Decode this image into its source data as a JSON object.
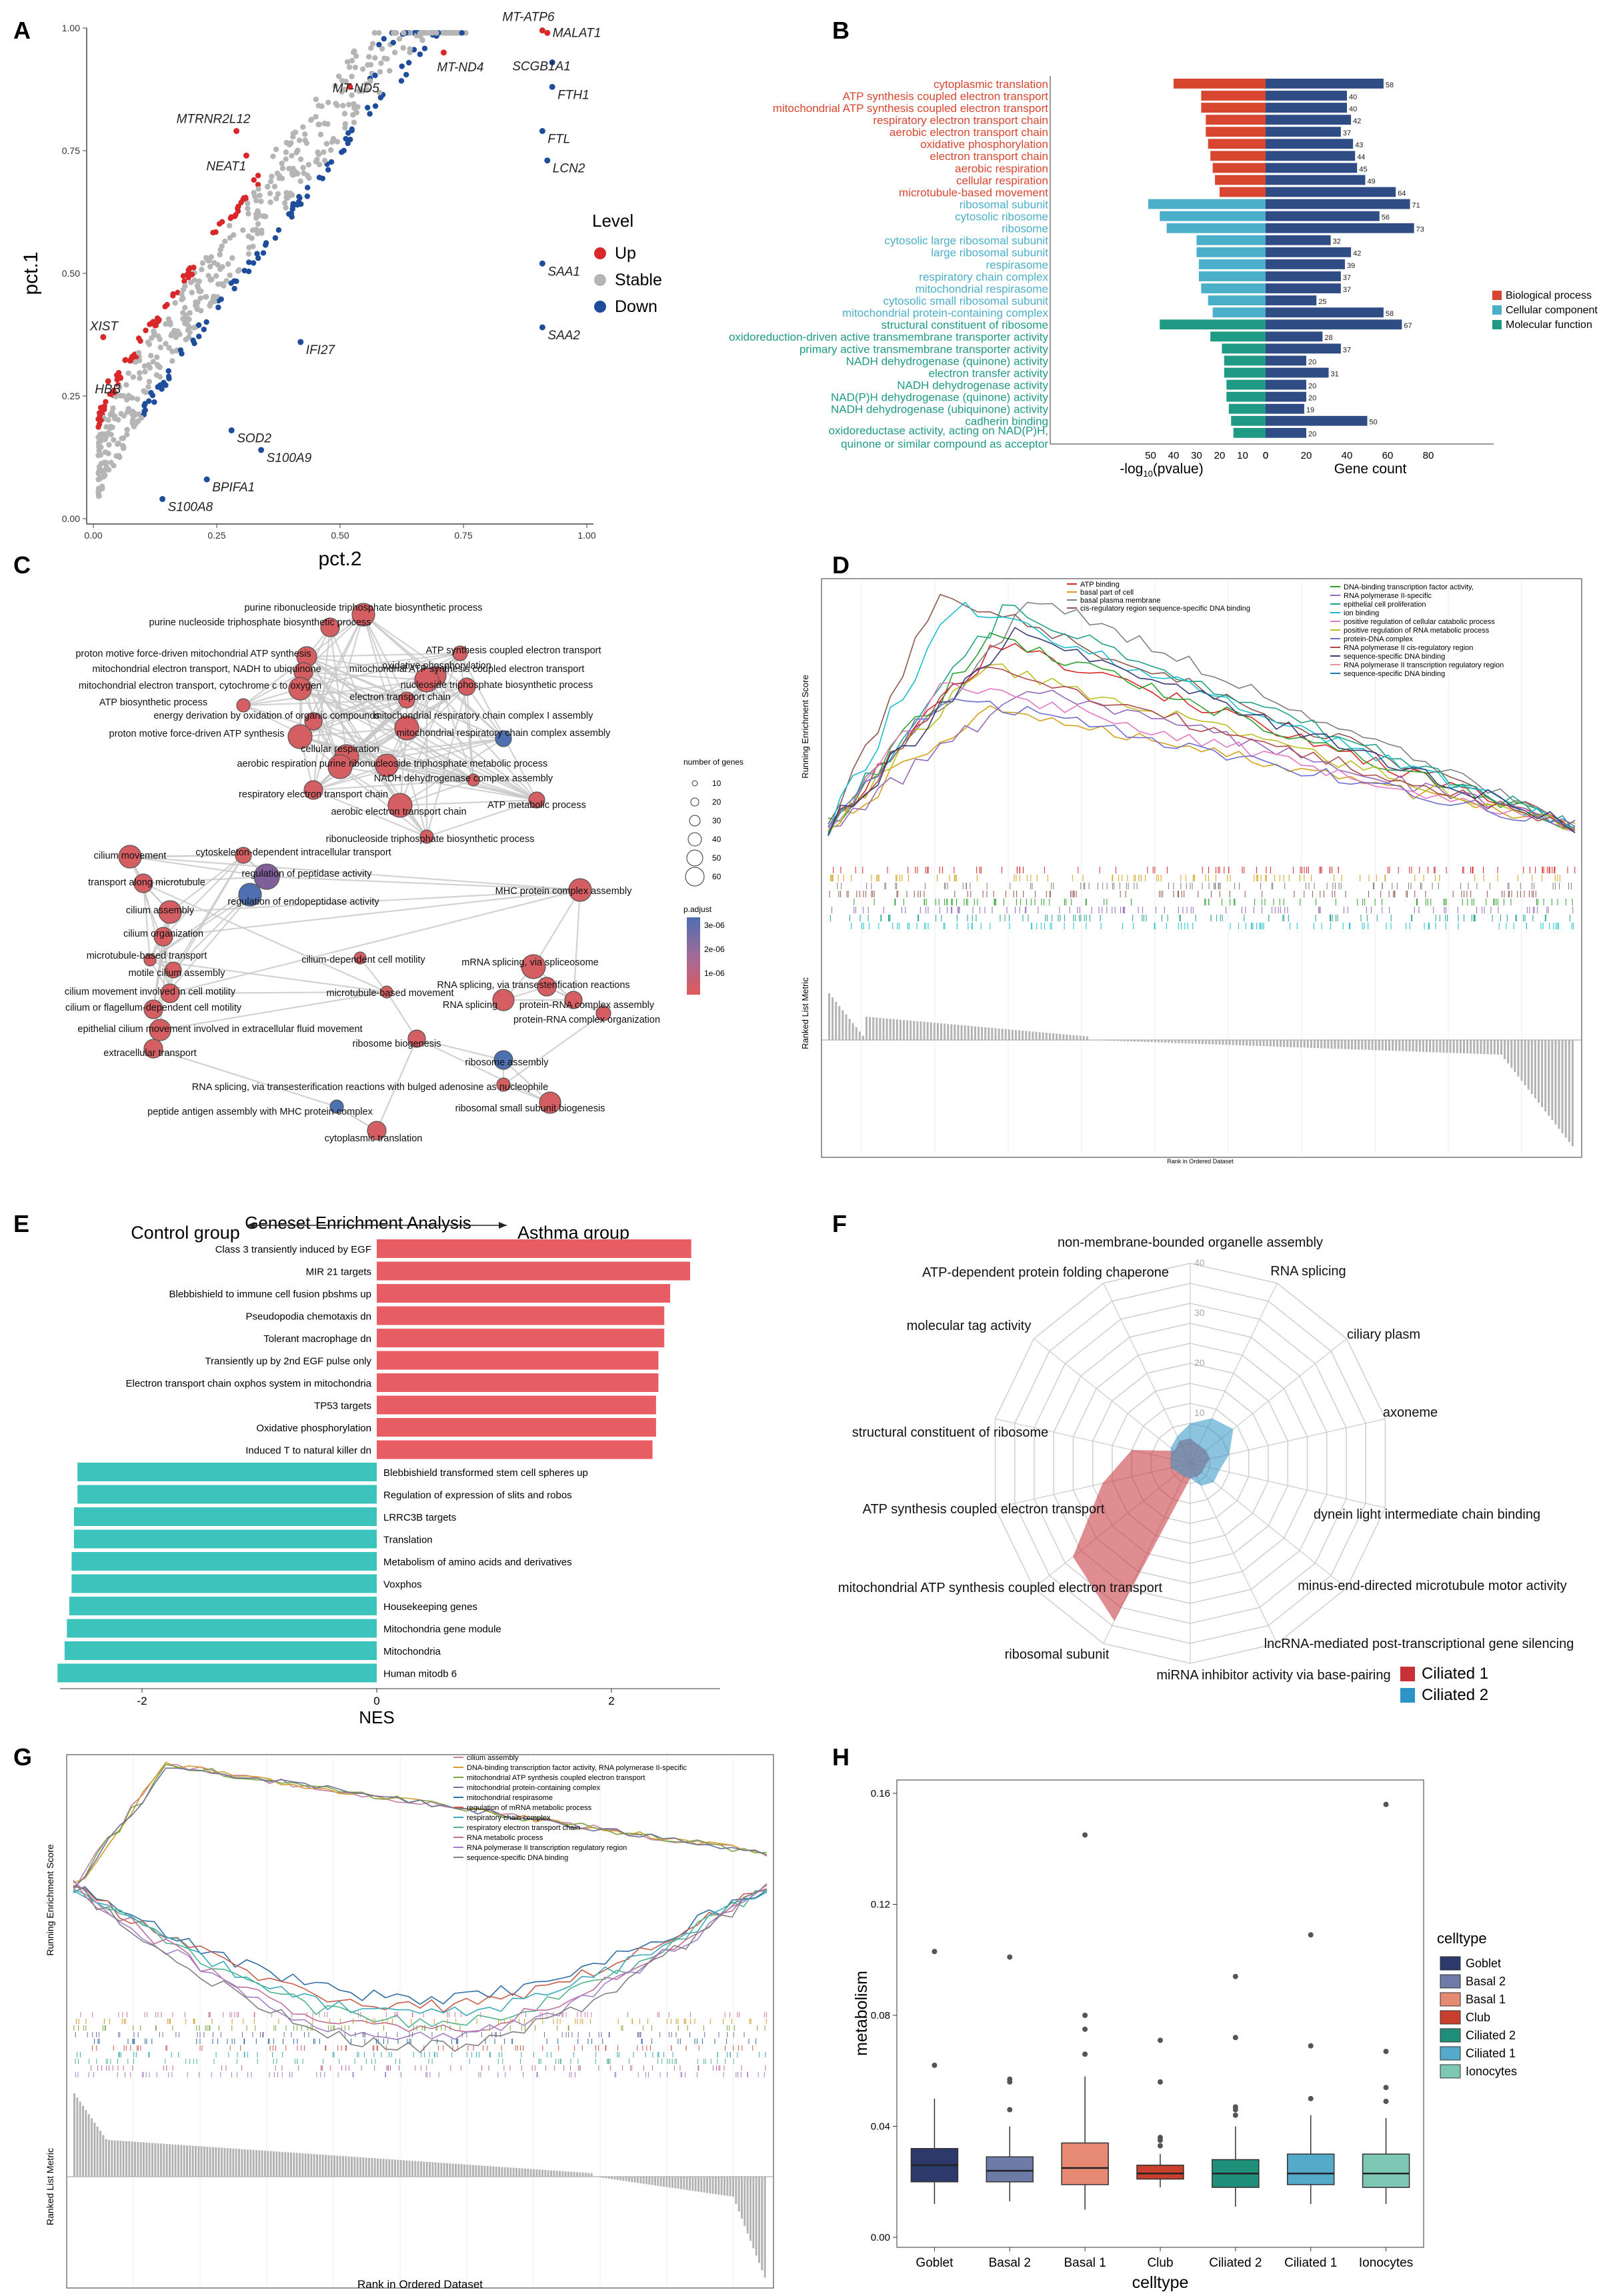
{
  "panel_letters": [
    "A",
    "B",
    "C",
    "D",
    "E",
    "F",
    "G",
    "H"
  ],
  "colors": {
    "up": "#d8282a",
    "stable": "#b5b5b5",
    "down": "#1e4d9c",
    "bp": "#d9462f",
    "cc": "#4bafc9",
    "mf": "#1f9a84",
    "asthma": "#e85d63",
    "control": "#3cc3bb",
    "ciliated1": "#c73036",
    "ciliated2": "#2e93c7",
    "gene_bar": "#2f4c85",
    "network_node": "#d45e62"
  },
  "chart_data": [
    {
      "panel": "A",
      "type": "scatter",
      "xlabel": "pct.2",
      "ylabel": "pct.1",
      "xlim": [
        0,
        1
      ],
      "ylim": [
        0,
        1
      ],
      "x_ticks": [
        "0.00",
        "0.25",
        "0.50",
        "0.75",
        "1.00"
      ],
      "y_ticks": [
        "0.00",
        "0.25",
        "0.50",
        "0.75",
        "1.00"
      ],
      "legend_title": "Level",
      "legend": [
        "Up",
        "Stable",
        "Down"
      ],
      "labeled_genes": [
        {
          "gene": "MT-ATP6",
          "x": 0.91,
          "y": 0.995,
          "level": "Up"
        },
        {
          "gene": "MALAT1",
          "x": 0.92,
          "y": 0.99,
          "level": "Up"
        },
        {
          "gene": "MT-ND4",
          "x": 0.71,
          "y": 0.95,
          "level": "Up"
        },
        {
          "gene": "SCGB1A1",
          "x": 0.93,
          "y": 0.93,
          "level": "Down"
        },
        {
          "gene": "FTH1",
          "x": 0.93,
          "y": 0.88,
          "level": "Down"
        },
        {
          "gene": "MT-ND5",
          "x": 0.52,
          "y": 0.88,
          "level": "Up"
        },
        {
          "gene": "MTRNR2L12",
          "x": 0.29,
          "y": 0.79,
          "level": "Up"
        },
        {
          "gene": "NEAT1",
          "x": 0.31,
          "y": 0.74,
          "level": "Up"
        },
        {
          "gene": "FTL",
          "x": 0.91,
          "y": 0.79,
          "level": "Down"
        },
        {
          "gene": "LCN2",
          "x": 0.92,
          "y": 0.73,
          "level": "Down"
        },
        {
          "gene": "SAA1",
          "x": 0.91,
          "y": 0.52,
          "level": "Down"
        },
        {
          "gene": "XIST",
          "x": 0.02,
          "y": 0.37,
          "level": "Up"
        },
        {
          "gene": "IFI27",
          "x": 0.42,
          "y": 0.36,
          "level": "Down"
        },
        {
          "gene": "SAA2",
          "x": 0.91,
          "y": 0.39,
          "level": "Down"
        },
        {
          "gene": "HBB",
          "x": 0.03,
          "y": 0.28,
          "level": "Up"
        },
        {
          "gene": "SOD2",
          "x": 0.28,
          "y": 0.18,
          "level": "Down"
        },
        {
          "gene": "S100A9",
          "x": 0.34,
          "y": 0.14,
          "level": "Down"
        },
        {
          "gene": "BPIFA1",
          "x": 0.23,
          "y": 0.08,
          "level": "Down"
        },
        {
          "gene": "S100A8",
          "x": 0.14,
          "y": 0.04,
          "level": "Down"
        }
      ]
    },
    {
      "panel": "B",
      "type": "bar",
      "xlabel_left": "-log",
      "xlabel_left_sub": "10",
      "xlabel_left_tail": "(pvalue)",
      "xlabel_right": "Gene count",
      "left_ticks": [
        "50",
        "40",
        "30",
        "20",
        "10",
        "0"
      ],
      "right_ticks": [
        "0",
        "20",
        "40",
        "60",
        "80"
      ],
      "legend": [
        "Biological process",
        "Cellular component",
        "Molecular function"
      ],
      "terms": [
        {
          "label": "cytoplasmic translation",
          "cat": "bp",
          "logp": 40,
          "count": 58
        },
        {
          "label": "ATP synthesis coupled electron transport",
          "cat": "bp",
          "logp": 28,
          "count": 40
        },
        {
          "label": "mitochondrial ATP synthesis coupled electron transport",
          "cat": "bp",
          "logp": 28,
          "count": 40
        },
        {
          "label": "respiratory electron transport chain",
          "cat": "bp",
          "logp": 26,
          "count": 42
        },
        {
          "label": "aerobic electron transport chain",
          "cat": "bp",
          "logp": 26,
          "count": 37
        },
        {
          "label": "oxidative phosphorylation",
          "cat": "bp",
          "logp": 25,
          "count": 43
        },
        {
          "label": "electron transport chain",
          "cat": "bp",
          "logp": 24,
          "count": 44
        },
        {
          "label": "aerobic respiration",
          "cat": "bp",
          "logp": 23,
          "count": 45
        },
        {
          "label": "cellular respiration",
          "cat": "bp",
          "logp": 22,
          "count": 49
        },
        {
          "label": "microtubule-based movement",
          "cat": "bp",
          "logp": 20,
          "count": 64
        },
        {
          "label": "ribosomal subunit",
          "cat": "cc",
          "logp": 51,
          "count": 71
        },
        {
          "label": "cytosolic ribosome",
          "cat": "cc",
          "logp": 46,
          "count": 56
        },
        {
          "label": "ribosome",
          "cat": "cc",
          "logp": 43,
          "count": 73
        },
        {
          "label": "cytosolic large ribosomal subunit",
          "cat": "cc",
          "logp": 30,
          "count": 32
        },
        {
          "label": "large ribosomal subunit",
          "cat": "cc",
          "logp": 30,
          "count": 42
        },
        {
          "label": "respirasome",
          "cat": "cc",
          "logp": 29,
          "count": 39
        },
        {
          "label": "respiratory chain complex",
          "cat": "cc",
          "logp": 29,
          "count": 37
        },
        {
          "label": "mitochondrial respirasome",
          "cat": "cc",
          "logp": 28,
          "count": 37
        },
        {
          "label": "cytosolic small ribosomal subunit",
          "cat": "cc",
          "logp": 25,
          "count": 25
        },
        {
          "label": "mitochondrial protein-containing complex",
          "cat": "cc",
          "logp": 23,
          "count": 58
        },
        {
          "label": "structural constituent of ribosome",
          "cat": "mf",
          "logp": 46,
          "count": 67
        },
        {
          "label": "oxidoreduction-driven active transmembrane transporter activity",
          "cat": "mf",
          "logp": 24,
          "count": 28
        },
        {
          "label": "primary active transmembrane transporter activity",
          "cat": "mf",
          "logp": 19,
          "count": 37
        },
        {
          "label": "NADH dehydrogenase (quinone) activity",
          "cat": "mf",
          "logp": 18,
          "count": 20
        },
        {
          "label": "electron transfer activity",
          "cat": "mf",
          "logp": 18,
          "count": 31
        },
        {
          "label": "NADH dehydrogenase activity",
          "cat": "mf",
          "logp": 17,
          "count": 20
        },
        {
          "label": "NAD(P)H dehydrogenase (quinone) activity",
          "cat": "mf",
          "logp": 17,
          "count": 20
        },
        {
          "label": "NADH dehydrogenase (ubiquinone) activity",
          "cat": "mf",
          "logp": 16,
          "count": 19
        },
        {
          "label": "cadherin binding",
          "cat": "mf",
          "logp": 15,
          "count": 50
        },
        {
          "label": "oxidoreductase activity, acting on NAD(P)H,",
          "label2": "quinone or similar compound as acceptor",
          "cat": "mf",
          "logp": 14,
          "count": 20
        }
      ]
    },
    {
      "panel": "C",
      "type": "network",
      "size_legend_title": "number of genes",
      "size_legend": [
        "10",
        "20",
        "30",
        "40",
        "50",
        "60"
      ],
      "color_legend_title": "p.adjust",
      "color_legend": [
        "3e-06",
        "2e-06",
        "1e-06"
      ],
      "nodes": [
        "purine ribonucleoside triphosphate biosynthetic process",
        "purine nucleoside triphosphate biosynthetic process",
        "oxidative phosphorylation",
        "proton motive force-driven mitochondrial ATP synthesis",
        "ATP synthesis coupled electron transport",
        "mitochondrial electron transport, NADH to ubiquinone",
        "mitochondrial ATP synthesis coupled electron transport",
        "mitochondrial electron transport, cytochrome c to oxygen",
        "nucleoside triphosphate biosynthetic process",
        "ATP biosynthetic process",
        "electron transport chain",
        "energy derivation by oxidation of organic compounds",
        "mitochondrial respiratory chain complex I assembly",
        "proton motive force-driven ATP synthesis",
        "mitochondrial respiratory chain complex assembly",
        "cellular respiration",
        "aerobic respiration",
        "purine ribonucleoside triphosphate metabolic process",
        "NADH dehydrogenase complex assembly",
        "respiratory electron transport chain",
        "ATP metabolic process",
        "aerobic electron transport chain",
        "ribonucleoside triphosphate biosynthetic process",
        "cilium movement",
        "cytoskeleton-dependent intracellular transport",
        "transport along microtubule",
        "regulation of peptidase activity",
        "cilium assembly",
        "regulation of endopeptidase activity",
        "MHC protein complex assembly",
        "cilium organization",
        "microtubule-based transport",
        "cilium-dependent cell motility",
        "mRNA splicing, via spliceosome",
        "motile cilium assembly",
        "RNA splicing, via transesterification reactions",
        "cilium movement involved in cell motility",
        "microtubule-based movement",
        "RNA splicing",
        "protein-RNA complex assembly",
        "cilium or flagellum-dependent cell motility",
        "protein-RNA complex organization",
        "epithelial cilium movement involved in extracellular fluid movement",
        "extracellular transport",
        "ribosome biogenesis",
        "ribosome assembly",
        "RNA splicing, via transesterification reactions with bulged adenosine as nucleophile",
        "peptide antigen assembly with MHC protein complex",
        "ribosomal small subunit biogenesis",
        "cytoplasmic translation"
      ]
    },
    {
      "panel": "D",
      "type": "line",
      "ylabel": "Running Enrichment Score",
      "ylabel2": "Ranked List Metric",
      "xlabel": "Rank in Ordered Dataset",
      "series_left": [
        "ATP binding",
        "basal part of cell",
        "basal plasma membrane",
        "cis-regulatory region sequence-specific DNA binding"
      ],
      "series_right": [
        "DNA-binding transcription factor activity,",
        "RNA polymerase II-specific",
        "epithelial cell proliferation",
        "ion binding",
        "positive regulation of cellular catabolic process",
        "positive regulation of RNA metabolic process",
        "protein-DNA complex",
        "RNA polymerase II cis-regulatory region",
        "sequence-specific DNA binding",
        "RNA polymerase II transcription regulatory region",
        "sequence-specific DNA binding"
      ]
    },
    {
      "panel": "E",
      "type": "bar",
      "title": "Geneset Enrichment Analysis",
      "left_group": "Control group",
      "right_group": "Asthma group",
      "xlabel": "NES",
      "x_ticks": [
        "-2",
        "0",
        "2"
      ],
      "xlim": [
        -2.8,
        2.7
      ],
      "asthma": [
        {
          "label": "Class 3 transiently induced by EGF",
          "nes": 2.68
        },
        {
          "label": "MIR 21 targets",
          "nes": 2.67
        },
        {
          "label": "Blebbishield to immune cell fusion pbshms up",
          "nes": 2.5
        },
        {
          "label": "Pseudopodia chemotaxis dn",
          "nes": 2.45
        },
        {
          "label": "Tolerant macrophage dn",
          "nes": 2.45
        },
        {
          "label": "Transiently up by 2nd EGF pulse only",
          "nes": 2.4
        },
        {
          "label": "Electron transport chain oxphos system in mitochondria",
          "nes": 2.4
        },
        {
          "label": "TP53 targets",
          "nes": 2.38
        },
        {
          "label": "Oxidative phosphorylation",
          "nes": 2.38
        },
        {
          "label": "Induced T to natural killer dn",
          "nes": 2.35
        }
      ],
      "control": [
        {
          "label": "Blebbishield transformed stem cell spheres up",
          "nes": -2.55
        },
        {
          "label": "Regulation of expression of slits and robos",
          "nes": -2.55
        },
        {
          "label": "LRRC3B targets",
          "nes": -2.58
        },
        {
          "label": "Translation",
          "nes": -2.58
        },
        {
          "label": "Metabolism of amino acids and derivatives",
          "nes": -2.6
        },
        {
          "label": "Voxphos",
          "nes": -2.6
        },
        {
          "label": "Housekeeping genes",
          "nes": -2.62
        },
        {
          "label": "Mitochondria gene module",
          "nes": -2.64
        },
        {
          "label": "Mitochondria",
          "nes": -2.66
        },
        {
          "label": "Human mitodb 6",
          "nes": -2.72
        }
      ]
    },
    {
      "panel": "F",
      "type": "radar",
      "r_ticks": [
        "10",
        "20",
        "30",
        "40"
      ],
      "rmax": 40,
      "axes": [
        "non-membrane-bounded organelle assembly",
        "RNA splicing",
        "ciliary plasm",
        "axoneme",
        "dynein light intermediate chain binding",
        "minus-end-directed microtubule motor activity",
        "lncRNA-mediated post-transcriptional gene silencing",
        "miRNA inhibitor activity via base-pairing",
        "ribosomal subunit",
        "mitochondrial ATP synthesis coupled electron transport",
        "ATP synthesis coupled electron transport",
        "structural constituent of ribosome",
        "molecular tag activity",
        "ATP-dependent protein folding chaperone"
      ],
      "series": [
        {
          "name": "Ciliated 1",
          "values": [
            5,
            4,
            4,
            4,
            3,
            3,
            3,
            3,
            35,
            30,
            18,
            12,
            4,
            5
          ]
        },
        {
          "name": "Ciliated 2",
          "values": [
            8,
            10,
            11,
            8,
            6,
            6,
            5,
            3,
            3,
            3,
            4,
            4,
            5,
            6
          ]
        }
      ]
    },
    {
      "panel": "G",
      "type": "line",
      "ylabel": "Running Enrichment Score",
      "ylabel2": "Ranked List Metric",
      "xlabel": "Rank in Ordered Dataset",
      "series": [
        "cilium assembly",
        "DNA-binding transcription factor activity, RNA polymerase II-specific",
        "mitochondrial ATP synthesis coupled electron transport",
        "mitochondrial protein-containing complex",
        "mitochondrial respirasome",
        "regulation of mRNA metabolic process",
        "respiratory chain complex",
        "respiratory electron transport chain",
        "RNA metabolic process",
        "RNA polymerase II transcription regulatory region",
        "sequence-specific DNA binding"
      ]
    },
    {
      "panel": "H",
      "type": "box",
      "xlabel": "celltype",
      "ylabel": "metabolism",
      "ylim": [
        0,
        0.16
      ],
      "y_ticks": [
        "0.00",
        "0.04",
        "0.08",
        "0.12",
        "0.16"
      ],
      "legend_title": "celltype",
      "categories": [
        "Goblet",
        "Basal 2",
        "Basal 1",
        "Club",
        "Ciliated 2",
        "Ciliated 1",
        "Ionocytes"
      ],
      "legend_order": [
        "Goblet",
        "Basal 2",
        "Basal 1",
        "Club",
        "Ciliated 2",
        "Ciliated 1",
        "Ionocytes"
      ],
      "box_colors": [
        "#2b3a6b",
        "#6e7ba6",
        "#e68a74",
        "#c8402d",
        "#1f8f79",
        "#56aac9",
        "#7fc7b5"
      ],
      "boxes": [
        {
          "min": 0.012,
          "q1": 0.02,
          "median": 0.026,
          "q3": 0.032,
          "max": 0.05,
          "outliers": [
            0.062,
            0.103
          ]
        },
        {
          "min": 0.013,
          "q1": 0.02,
          "median": 0.024,
          "q3": 0.029,
          "max": 0.04,
          "outliers": [
            0.046,
            0.056,
            0.057,
            0.101
          ]
        },
        {
          "min": 0.01,
          "q1": 0.019,
          "median": 0.025,
          "q3": 0.034,
          "max": 0.058,
          "outliers": [
            0.066,
            0.075,
            0.08,
            0.145
          ]
        },
        {
          "min": 0.018,
          "q1": 0.021,
          "median": 0.023,
          "q3": 0.026,
          "max": 0.03,
          "outliers": [
            0.033,
            0.035,
            0.036,
            0.056,
            0.071
          ]
        },
        {
          "min": 0.011,
          "q1": 0.018,
          "median": 0.023,
          "q3": 0.028,
          "max": 0.04,
          "outliers": [
            0.044,
            0.046,
            0.047,
            0.072,
            0.094
          ]
        },
        {
          "min": 0.012,
          "q1": 0.019,
          "median": 0.023,
          "q3": 0.03,
          "max": 0.044,
          "outliers": [
            0.05,
            0.069,
            0.109
          ]
        },
        {
          "min": 0.012,
          "q1": 0.018,
          "median": 0.023,
          "q3": 0.03,
          "max": 0.043,
          "outliers": [
            0.049,
            0.054,
            0.067,
            0.156
          ]
        }
      ]
    }
  ]
}
